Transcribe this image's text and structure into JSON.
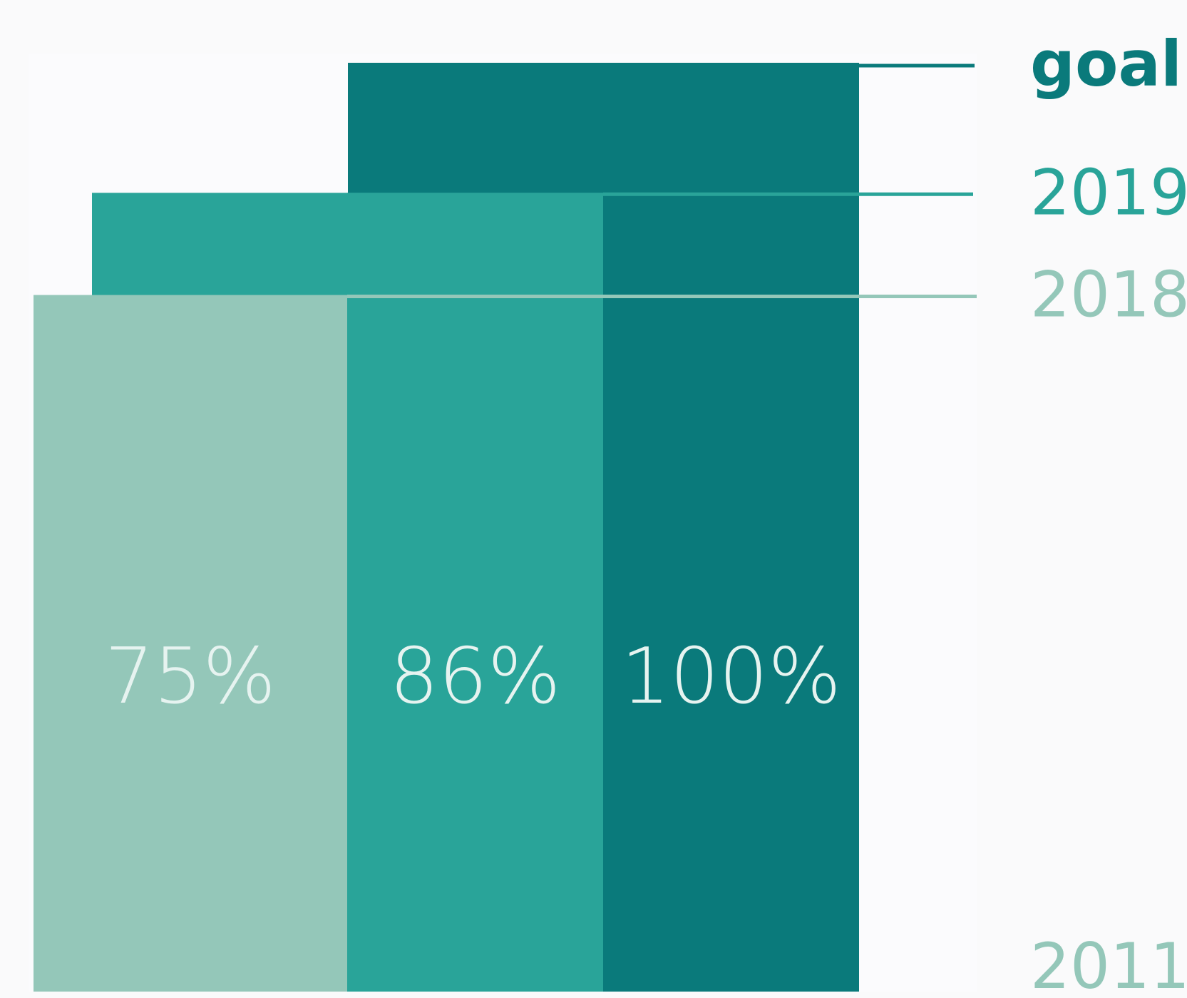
{
  "chart_data": {
    "type": "bar",
    "title": "",
    "xlabel": "",
    "ylabel": "",
    "ylim": [
      0,
      100
    ],
    "bars": [
      {
        "label": "75%",
        "value": 75,
        "color": "#94c7b9"
      },
      {
        "label": "86%",
        "value": 86,
        "color": "#29a499"
      },
      {
        "label": "100%",
        "value": 100,
        "color": "#0a7a7b"
      }
    ],
    "markers": [
      {
        "label": "goal",
        "value": 100,
        "color": "#0a7a7b"
      },
      {
        "label": "2019",
        "value": 86,
        "color": "#29a499"
      },
      {
        "label": "2018",
        "value": 75,
        "color": "#94c7b9"
      }
    ],
    "baseline_label": {
      "label": "2011",
      "color": "#94c7b9"
    },
    "bar_label_color": "#e6f3f0",
    "background": "#fafafb",
    "legend": "right"
  }
}
